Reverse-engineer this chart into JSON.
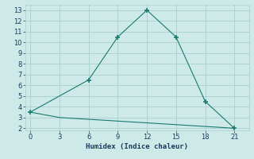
{
  "line1_x": [
    0,
    6,
    9,
    12,
    15,
    18,
    21
  ],
  "line1_y": [
    3.5,
    6.5,
    10.5,
    13.0,
    10.5,
    4.5,
    2.0
  ],
  "line2_x": [
    0,
    3,
    21
  ],
  "line2_y": [
    3.5,
    3.0,
    2.0
  ],
  "color": "#1a7a6e",
  "xlabel": "Humidex (Indice chaleur)",
  "xlim": [
    -0.5,
    22.5
  ],
  "ylim": [
    1.8,
    13.5
  ],
  "yticks": [
    2,
    3,
    4,
    5,
    6,
    7,
    8,
    9,
    10,
    11,
    12,
    13
  ],
  "xticks": [
    0,
    3,
    6,
    9,
    12,
    15,
    18,
    21
  ],
  "bg_color": "#ceeae8",
  "grid_color": "#aacfcc"
}
